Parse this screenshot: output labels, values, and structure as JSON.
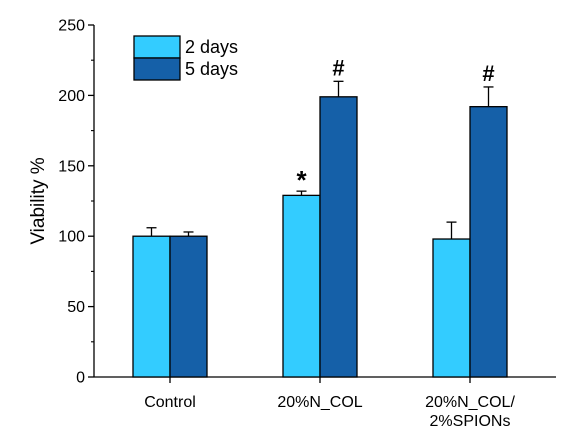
{
  "chart_data": {
    "type": "bar",
    "title": "",
    "xlabel": "",
    "ylabel": "Viability %",
    "ylim": [
      0,
      250
    ],
    "yticks": [
      0,
      50,
      100,
      150,
      200,
      250
    ],
    "grid": false,
    "legend_position": "top-left",
    "categories": [
      {
        "lines": [
          "Control"
        ]
      },
      {
        "lines": [
          "20%N_COL"
        ]
      },
      {
        "lines": [
          "20%N_COL/",
          "2%SPIONs"
        ]
      }
    ],
    "series": [
      {
        "name": "2 days",
        "color": "#33ccff",
        "values": [
          100,
          129,
          98
        ],
        "errors": [
          6,
          3,
          12
        ],
        "annotations": [
          "",
          "*",
          ""
        ]
      },
      {
        "name": "5 days",
        "color": "#1560a8",
        "values": [
          100,
          199,
          192
        ],
        "errors": [
          3,
          11,
          14
        ],
        "annotations": [
          "",
          "#",
          "#"
        ]
      }
    ]
  }
}
